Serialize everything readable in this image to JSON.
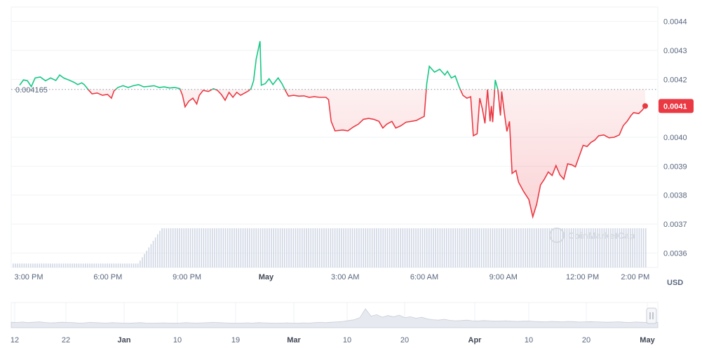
{
  "chart_data": {
    "type": "line",
    "currency": "USD",
    "reference_price": "0.004165",
    "reference_value": 0.004165,
    "current_price": "0.0041",
    "current_value": 0.004108,
    "ylim": [
      0.00355,
      0.00445
    ],
    "y_ticks": [
      {
        "label": "0.0044",
        "value": 0.0044
      },
      {
        "label": "0.0043",
        "value": 0.0043
      },
      {
        "label": "0.0042",
        "value": 0.0042
      },
      {
        "label": "0.0040",
        "value": 0.004
      },
      {
        "label": "0.0039",
        "value": 0.0039
      },
      {
        "label": "0.0038",
        "value": 0.0038
      },
      {
        "label": "0.0037",
        "value": 0.0037
      },
      {
        "label": "0.0036",
        "value": 0.0036
      }
    ],
    "x_ticks": [
      {
        "label": "3:00 PM",
        "t": 3,
        "bold": false
      },
      {
        "label": "6:00 PM",
        "t": 6,
        "bold": false
      },
      {
        "label": "9:00 PM",
        "t": 9,
        "bold": false
      },
      {
        "label": "May",
        "t": 12,
        "bold": true
      },
      {
        "label": "3:00 AM",
        "t": 15,
        "bold": false
      },
      {
        "label": "6:00 AM",
        "t": 18,
        "bold": false
      },
      {
        "label": "9:00 AM",
        "t": 21,
        "bold": false
      },
      {
        "label": "12:00 PM",
        "t": 24,
        "bold": false
      },
      {
        "label": "2:00 PM",
        "t": 26,
        "bold": false
      }
    ],
    "xlim": [
      2.5,
      26.8
    ],
    "series": [
      {
        "points": [
          [
            2.8,
            0.00418
          ],
          [
            2.95,
            0.004198
          ],
          [
            3.1,
            0.004195
          ],
          [
            3.25,
            0.004175
          ],
          [
            3.4,
            0.004205
          ],
          [
            3.6,
            0.004208
          ],
          [
            3.8,
            0.004195
          ],
          [
            4.0,
            0.004205
          ],
          [
            4.2,
            0.004196
          ],
          [
            4.35,
            0.004215
          ],
          [
            4.5,
            0.004205
          ],
          [
            4.7,
            0.004198
          ],
          [
            4.9,
            0.00419
          ],
          [
            5.05,
            0.004182
          ],
          [
            5.2,
            0.004188
          ],
          [
            5.3,
            0.004182
          ],
          [
            5.45,
            0.004165
          ],
          [
            5.6,
            0.00415
          ],
          [
            5.8,
            0.004153
          ],
          [
            6.0,
            0.004145
          ],
          [
            6.2,
            0.004148
          ],
          [
            6.35,
            0.004135
          ],
          [
            6.45,
            0.00416
          ],
          [
            6.6,
            0.004172
          ],
          [
            6.8,
            0.004178
          ],
          [
            7.0,
            0.004172
          ],
          [
            7.2,
            0.004178
          ],
          [
            7.4,
            0.004182
          ],
          [
            7.6,
            0.004174
          ],
          [
            7.8,
            0.004176
          ],
          [
            8.0,
            0.004178
          ],
          [
            8.2,
            0.004172
          ],
          [
            8.4,
            0.004174
          ],
          [
            8.6,
            0.00417
          ],
          [
            8.8,
            0.004172
          ],
          [
            9.0,
            0.004168
          ],
          [
            9.1,
            0.004145
          ],
          [
            9.2,
            0.004105
          ],
          [
            9.35,
            0.004125
          ],
          [
            9.5,
            0.004135
          ],
          [
            9.65,
            0.004115
          ],
          [
            9.75,
            0.004145
          ],
          [
            9.9,
            0.004162
          ],
          [
            10.1,
            0.004158
          ],
          [
            10.3,
            0.004168
          ],
          [
            10.45,
            0.004162
          ],
          [
            10.6,
            0.004148
          ],
          [
            10.75,
            0.004128
          ],
          [
            10.9,
            0.004155
          ],
          [
            11.05,
            0.004138
          ],
          [
            11.2,
            0.004155
          ],
          [
            11.35,
            0.004145
          ],
          [
            11.55,
            0.004155
          ],
          [
            11.65,
            0.00416
          ],
          [
            11.75,
            0.004168
          ],
          [
            11.85,
            0.004195
          ],
          [
            11.95,
            0.00427
          ],
          [
            12.1,
            0.004332
          ],
          [
            12.15,
            0.00418
          ],
          [
            12.3,
            0.004185
          ],
          [
            12.45,
            0.004202
          ],
          [
            12.6,
            0.004182
          ],
          [
            12.8,
            0.004205
          ],
          [
            12.95,
            0.004185
          ],
          [
            13.1,
            0.004158
          ],
          [
            13.2,
            0.004142
          ],
          [
            13.4,
            0.004145
          ],
          [
            13.6,
            0.004142
          ],
          [
            13.8,
            0.004143
          ],
          [
            14.0,
            0.004138
          ],
          [
            14.2,
            0.00414
          ],
          [
            14.4,
            0.004138
          ],
          [
            14.65,
            0.004138
          ],
          [
            14.75,
            0.00413
          ],
          [
            14.85,
            0.004055
          ],
          [
            15.0,
            0.004022
          ],
          [
            15.3,
            0.004025
          ],
          [
            15.5,
            0.004022
          ],
          [
            15.7,
            0.004035
          ],
          [
            15.9,
            0.004045
          ],
          [
            16.1,
            0.004062
          ],
          [
            16.3,
            0.004065
          ],
          [
            16.5,
            0.004062
          ],
          [
            16.7,
            0.004055
          ],
          [
            16.85,
            0.004032
          ],
          [
            17.0,
            0.004045
          ],
          [
            17.2,
            0.004055
          ],
          [
            17.35,
            0.004032
          ],
          [
            17.55,
            0.00404
          ],
          [
            17.75,
            0.004052
          ],
          [
            17.95,
            0.004055
          ],
          [
            18.15,
            0.004058
          ],
          [
            18.3,
            0.004065
          ],
          [
            18.45,
            0.004072
          ],
          [
            18.55,
            0.004185
          ],
          [
            18.65,
            0.004245
          ],
          [
            18.85,
            0.004225
          ],
          [
            19.05,
            0.004235
          ],
          [
            19.25,
            0.004215
          ],
          [
            19.35,
            0.004228
          ],
          [
            19.5,
            0.004205
          ],
          [
            19.65,
            0.004212
          ],
          [
            19.8,
            0.004175
          ],
          [
            19.95,
            0.004145
          ],
          [
            20.1,
            0.004135
          ],
          [
            20.25,
            0.00414
          ],
          [
            20.35,
            0.004005
          ],
          [
            20.5,
            0.004012
          ],
          [
            20.6,
            0.004135
          ],
          [
            20.7,
            0.004098
          ],
          [
            20.8,
            0.004048
          ],
          [
            20.9,
            0.004165
          ],
          [
            21.0,
            0.004055
          ],
          [
            21.05,
            0.004108
          ],
          [
            21.1,
            0.004052
          ],
          [
            21.2,
            0.004198
          ],
          [
            21.3,
            0.004165
          ],
          [
            21.4,
            0.004075
          ],
          [
            21.45,
            0.004158
          ],
          [
            21.55,
            0.004085
          ],
          [
            21.65,
            0.00402
          ],
          [
            21.75,
            0.004055
          ],
          [
            21.85,
            0.003875
          ],
          [
            22.0,
            0.003885
          ],
          [
            22.1,
            0.003845
          ],
          [
            22.3,
            0.003812
          ],
          [
            22.5,
            0.003785
          ],
          [
            22.65,
            0.003725
          ],
          [
            22.8,
            0.003768
          ],
          [
            22.95,
            0.003835
          ],
          [
            23.1,
            0.003855
          ],
          [
            23.25,
            0.00388
          ],
          [
            23.4,
            0.003868
          ],
          [
            23.55,
            0.003902
          ],
          [
            23.7,
            0.00387
          ],
          [
            23.85,
            0.003855
          ],
          [
            24.0,
            0.003908
          ],
          [
            24.15,
            0.003905
          ],
          [
            24.3,
            0.003898
          ],
          [
            24.45,
            0.003935
          ],
          [
            24.6,
            0.003972
          ],
          [
            24.75,
            0.003968
          ],
          [
            24.9,
            0.003982
          ],
          [
            25.05,
            0.00399
          ],
          [
            25.2,
            0.004005
          ],
          [
            25.4,
            0.004008
          ],
          [
            25.6,
            0.003998
          ],
          [
            25.8,
            0.004
          ],
          [
            26.0,
            0.004008
          ],
          [
            26.15,
            0.00404
          ],
          [
            26.3,
            0.004055
          ],
          [
            26.45,
            0.004075
          ],
          [
            26.55,
            0.004085
          ],
          [
            26.75,
            0.004082
          ],
          [
            26.9,
            0.004095
          ],
          [
            27.0,
            0.004108
          ]
        ]
      }
    ],
    "volume_bars_note": "",
    "volume": {
      "low_until": 7.3,
      "ramp_to": 8.2,
      "low_level": 0.1,
      "high_level": 1.0,
      "bar_count": 290
    },
    "navigator": {
      "labels": [
        {
          "label": "12",
          "bold": false
        },
        {
          "label": "22",
          "bold": false
        },
        {
          "label": "Jan",
          "bold": true
        },
        {
          "label": "10",
          "bold": false
        },
        {
          "label": "19",
          "bold": false
        },
        {
          "label": "Mar",
          "bold": true
        },
        {
          "label": "10",
          "bold": false
        },
        {
          "label": "20",
          "bold": false
        },
        {
          "label": "Apr",
          "bold": true
        },
        {
          "label": "10",
          "bold": false
        },
        {
          "label": "20",
          "bold": false
        },
        {
          "label": "May",
          "bold": true
        }
      ],
      "series": [
        0.26,
        0.25,
        0.27,
        0.24,
        0.26,
        0.28,
        0.25,
        0.23,
        0.24,
        0.26,
        0.25,
        0.24,
        0.22,
        0.23,
        0.25,
        0.24,
        0.23,
        0.22,
        0.24,
        0.23,
        0.22,
        0.21,
        0.23,
        0.24,
        0.22,
        0.21,
        0.22,
        0.23,
        0.22,
        0.21,
        0.22,
        0.24,
        0.23,
        0.22,
        0.23,
        0.24,
        0.25,
        0.24,
        0.23,
        0.22,
        0.21,
        0.22,
        0.23,
        0.22,
        0.24,
        0.23,
        0.22,
        0.21,
        0.22,
        0.23,
        0.22,
        0.21,
        0.23,
        0.22,
        0.24,
        0.25,
        0.24,
        0.26,
        0.28,
        0.3,
        0.34,
        0.38,
        0.48,
        0.9,
        0.55,
        0.62,
        0.5,
        0.58,
        0.52,
        0.6,
        0.48,
        0.52,
        0.45,
        0.5,
        0.42,
        0.38,
        0.36,
        0.4,
        0.35,
        0.33,
        0.34,
        0.36,
        0.33,
        0.32,
        0.34,
        0.33,
        0.31,
        0.32,
        0.33,
        0.31,
        0.3,
        0.31,
        0.32,
        0.3,
        0.29,
        0.28,
        0.3,
        0.29,
        0.28,
        0.3,
        0.29,
        0.27,
        0.28,
        0.29,
        0.28,
        0.27,
        0.26,
        0.27,
        0.28,
        0.26,
        0.25,
        0.27,
        0.26,
        0.25,
        0.26,
        0.25
      ]
    },
    "watermark": "CoinMarketCap"
  }
}
